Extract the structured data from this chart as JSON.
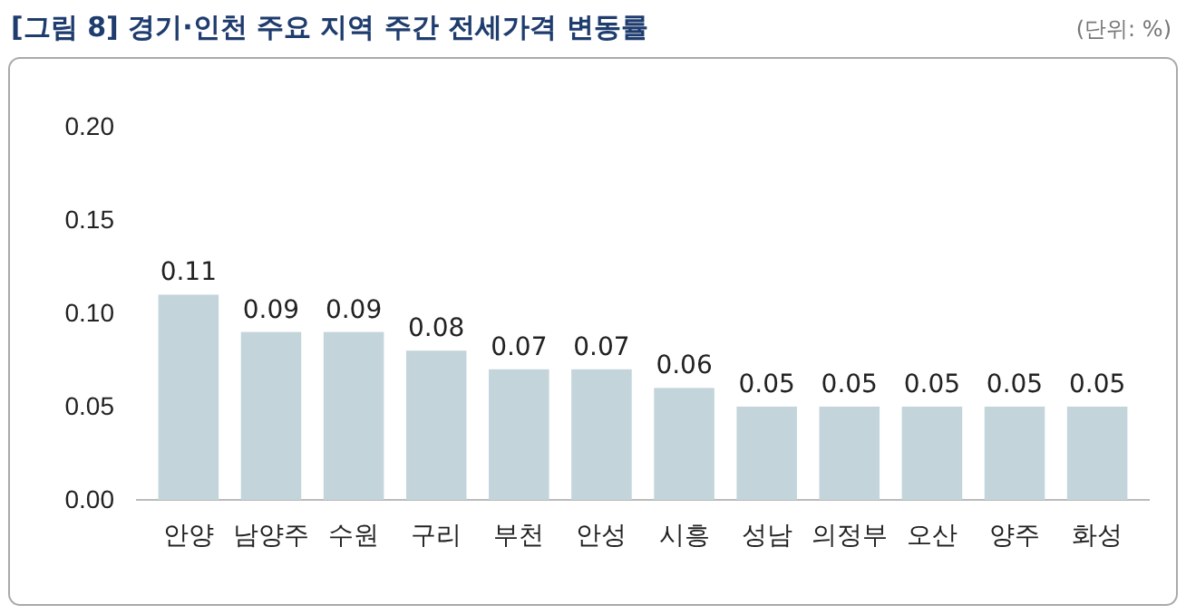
{
  "chart_data": {
    "type": "bar",
    "title": "[그림 8] 경기·인천 주요 지역 주간 전세가격 변동률",
    "annotations": [
      "(단위: %)"
    ],
    "categories": [
      "안양",
      "남양주",
      "수원",
      "구리",
      "부천",
      "안성",
      "시흥",
      "성남",
      "의정부",
      "오산",
      "양주",
      "화성"
    ],
    "values": [
      0.11,
      0.09,
      0.09,
      0.08,
      0.07,
      0.07,
      0.06,
      0.05,
      0.05,
      0.05,
      0.05,
      0.05
    ],
    "color": "#c3d4da",
    "ylim": [
      0,
      0.2
    ],
    "yticks": [
      {
        "value": 0,
        "label": "0.00"
      },
      {
        "value": 0.05,
        "label": "0.05"
      },
      {
        "value": 0.1,
        "label": "0.10"
      },
      {
        "value": 0.15,
        "label": "0.15"
      },
      {
        "value": 0.2,
        "label": "0.20"
      }
    ],
    "data_labels": true,
    "grid": false
  }
}
